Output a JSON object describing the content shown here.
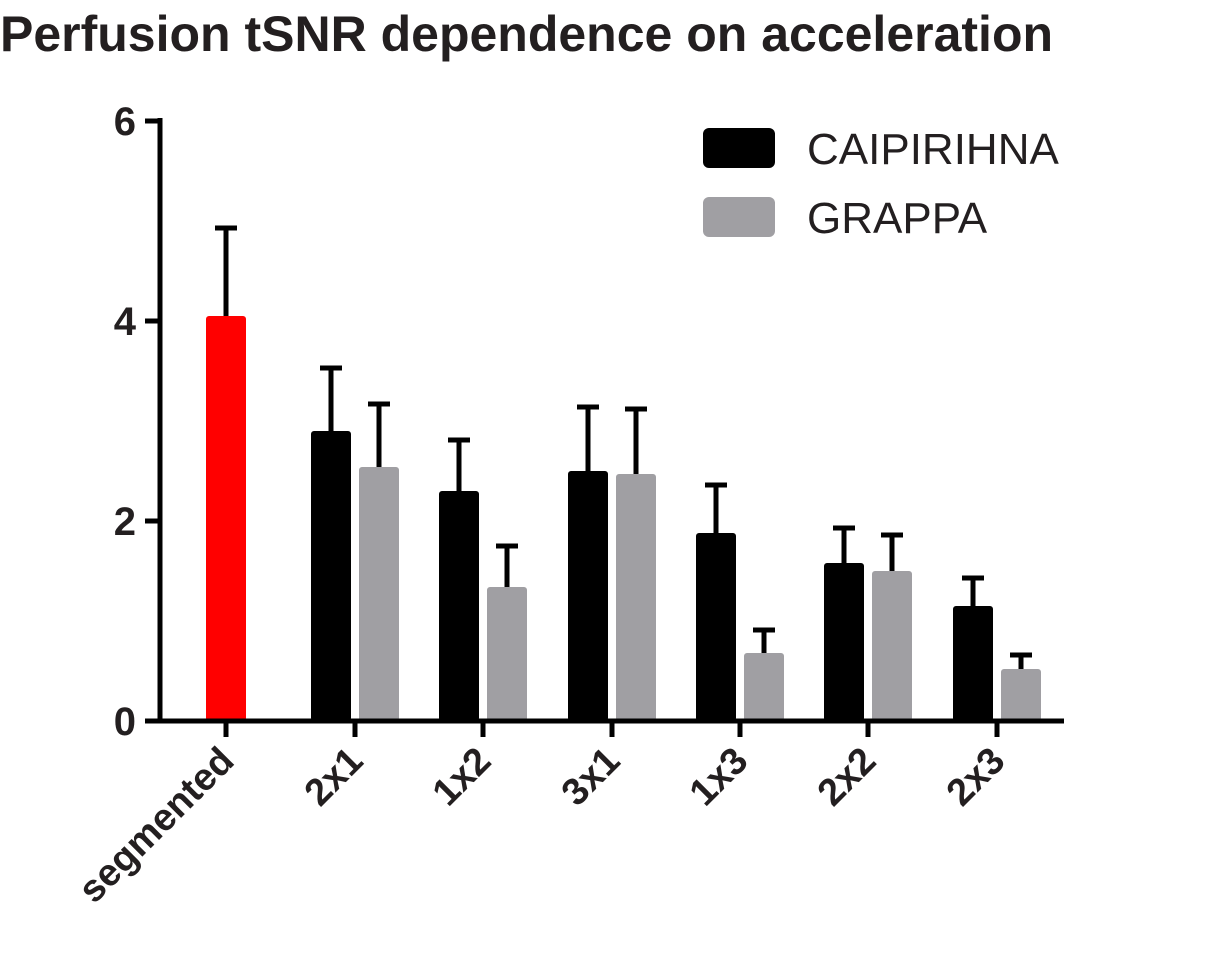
{
  "chart_data": {
    "type": "bar",
    "title": "Perfusion tSNR dependence on acceleration",
    "xlabel": "",
    "ylabel": "",
    "ylim": [
      0,
      6
    ],
    "yticks": [
      0,
      2,
      4,
      6
    ],
    "categories": [
      "segmented",
      "2x1",
      "1x2",
      "3x1",
      "1x3",
      "2x2",
      "2x3"
    ],
    "legend_position": "top-right",
    "reference": {
      "category": "segmented",
      "value": 4.05,
      "error": 0.88,
      "color": "#ff0000"
    },
    "series": [
      {
        "name": "CAIPIRIHNA",
        "color": "#000000",
        "values": [
          null,
          2.9,
          2.3,
          2.5,
          1.88,
          1.58,
          1.15
        ],
        "errors": [
          null,
          0.63,
          0.51,
          0.64,
          0.48,
          0.35,
          0.28
        ]
      },
      {
        "name": "GRAPPA",
        "color": "#a09fa3",
        "values": [
          null,
          2.54,
          1.34,
          2.47,
          0.68,
          1.5,
          0.52
        ],
        "errors": [
          null,
          0.63,
          0.41,
          0.65,
          0.23,
          0.36,
          0.14
        ]
      }
    ]
  }
}
